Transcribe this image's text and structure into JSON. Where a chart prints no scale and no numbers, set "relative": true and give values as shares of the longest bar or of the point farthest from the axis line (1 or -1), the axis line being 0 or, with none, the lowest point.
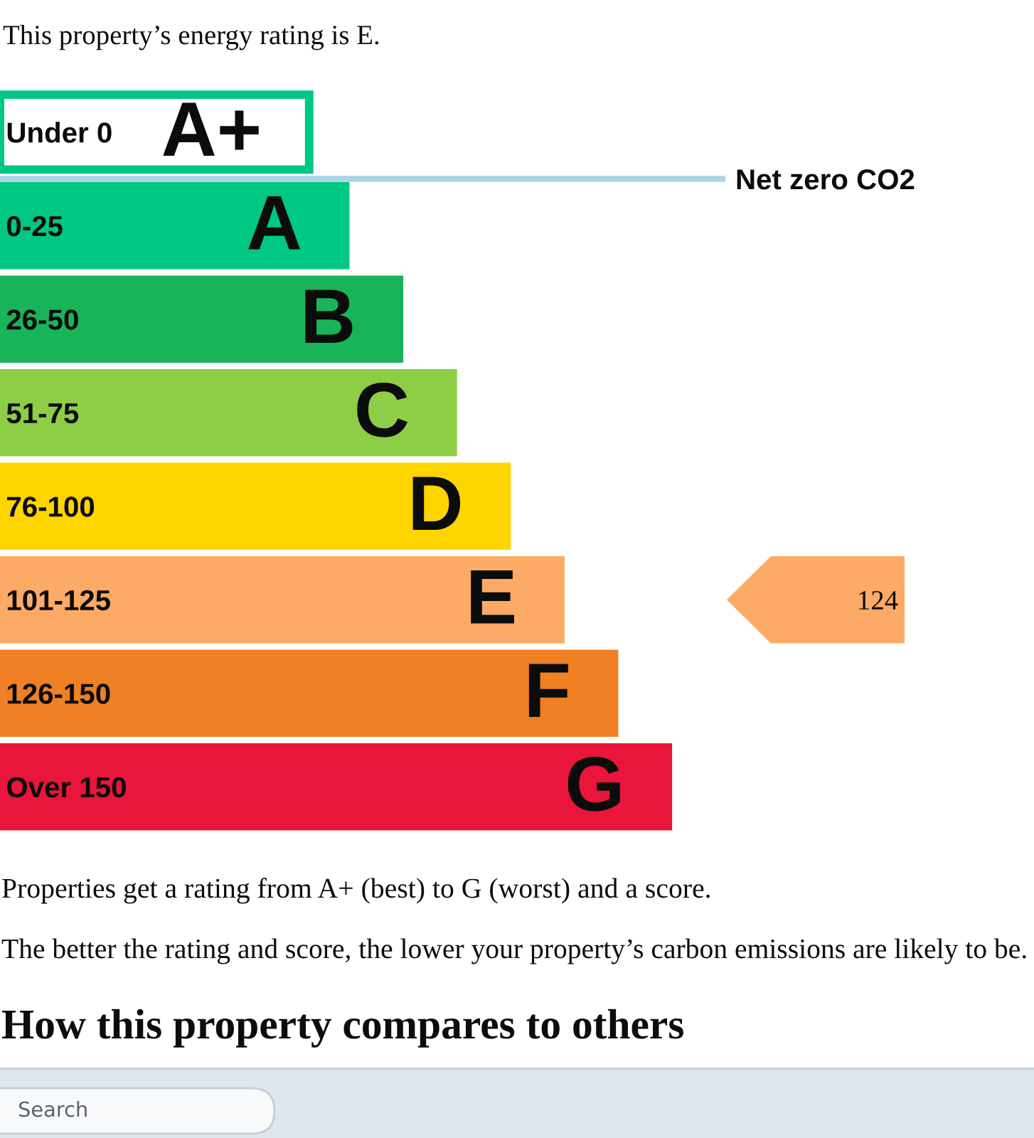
{
  "chart_data": {
    "type": "bar",
    "orientation": "horizontal",
    "relative": true,
    "title": "This property’s energy rating is E.",
    "categories": [
      "Under 0",
      "0-25",
      "26-50",
      "51-75",
      "76-100",
      "101-125",
      "126-150",
      "Over 150"
    ],
    "values": [
      0.46,
      0.52,
      0.6,
      0.68,
      0.76,
      0.84,
      0.92,
      1
    ],
    "colors": [
      "#00c781",
      "#00c781",
      "#19b459",
      "#8dce46",
      "#ffd500",
      "#fcaa65",
      "#ef8023",
      "#e9153b"
    ],
    "ref_lines": [
      {
        "axis": "y",
        "value": "Under 0",
        "label": "Net zero CO2",
        "color": "#a9d6e5"
      }
    ],
    "annotations": [
      {
        "text": "A+",
        "x": 0.46,
        "y": "Under 0"
      },
      {
        "text": "A",
        "x": 0.52,
        "y": "0-25"
      },
      {
        "text": "B",
        "x": 0.6,
        "y": "26-50"
      },
      {
        "text": "C",
        "x": 0.68,
        "y": "51-75"
      },
      {
        "text": "D",
        "x": 0.76,
        "y": "76-100"
      },
      {
        "text": "E",
        "x": 0.84,
        "y": "101-125"
      },
      {
        "text": "F",
        "x": 0.92,
        "y": "126-150"
      },
      {
        "text": "G",
        "x": 1,
        "y": "Over 150"
      },
      "124",
      "Properties get a rating from A+ (best) to G (worst) and a score.",
      "The better the rating and score, the lower your property’s carbon emissions are likely to be.",
      "How this property compares to others",
      "Search"
    ]
  }
}
